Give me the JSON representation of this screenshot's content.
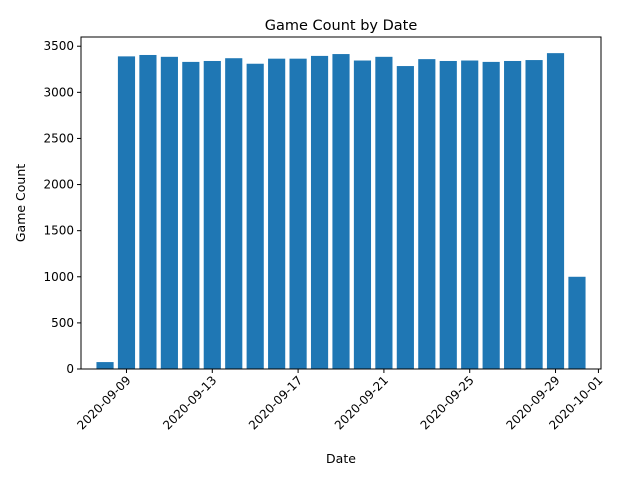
{
  "chart_data": {
    "type": "bar",
    "title": "Game Count by Date",
    "xlabel": "Date",
    "ylabel": "Game Count",
    "grid": false,
    "bar_color": "#1f77b4",
    "x_type": "date",
    "dates": [
      "2020-09-08",
      "2020-09-09",
      "2020-09-10",
      "2020-09-11",
      "2020-09-12",
      "2020-09-13",
      "2020-09-14",
      "2020-09-15",
      "2020-09-16",
      "2020-09-17",
      "2020-09-18",
      "2020-09-19",
      "2020-09-20",
      "2020-09-21",
      "2020-09-22",
      "2020-09-23",
      "2020-09-24",
      "2020-09-25",
      "2020-09-26",
      "2020-09-27",
      "2020-09-28",
      "2020-09-29",
      "2020-09-30"
    ],
    "values": [
      75,
      3390,
      3405,
      3385,
      3330,
      3340,
      3370,
      3310,
      3365,
      3365,
      3395,
      3415,
      3345,
      3385,
      3285,
      3360,
      3340,
      3345,
      3330,
      3340,
      3350,
      3425,
      1000
    ],
    "xlim": [
      "2020-09-07",
      "2020-10-01"
    ],
    "ylim": [
      0,
      3600
    ],
    "x_ticks": [
      "2020-09-09",
      "2020-09-13",
      "2020-09-17",
      "2020-09-21",
      "2020-09-25",
      "2020-09-29",
      "2020-10-01"
    ],
    "y_ticks": [
      0,
      500,
      1000,
      1500,
      2000,
      2500,
      3000,
      3500
    ]
  }
}
